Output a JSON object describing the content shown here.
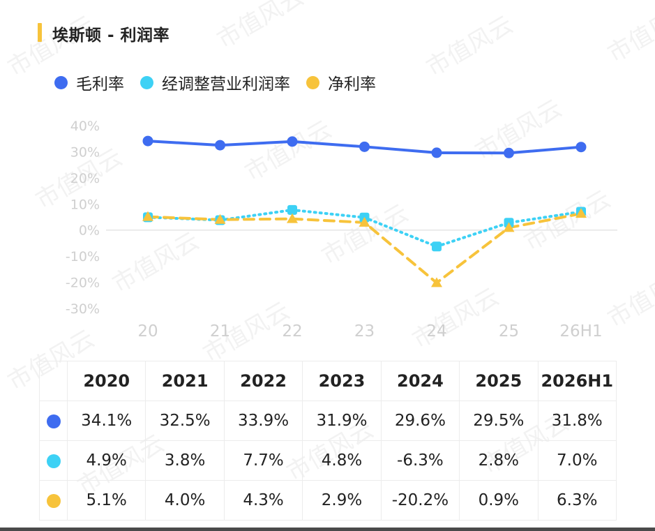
{
  "title": "埃斯顿 - 利润率",
  "watermark_text": "市值风云",
  "colors": {
    "gross": "#3e6cf0",
    "adjusted": "#3dd1f5",
    "net": "#f7c33b",
    "title_bar": "#f7c33b",
    "axis_text": "#cfcfcf",
    "zero_line": "#e5e5e5"
  },
  "legend": [
    {
      "label": "毛利率",
      "color": "#3e6cf0"
    },
    {
      "label": "经调整营业利润率",
      "color": "#3dd1f5"
    },
    {
      "label": "净利率",
      "color": "#f7c33b"
    }
  ],
  "chart_data": {
    "type": "line",
    "categories": [
      "20",
      "21",
      "22",
      "23",
      "24",
      "25",
      "26H1"
    ],
    "y_ticks": [
      "40%",
      "30%",
      "20%",
      "10%",
      "0%",
      "-10%",
      "-20%",
      "-30%"
    ],
    "ylim": [
      -30,
      40
    ],
    "grid": false,
    "legend_position": "top-left",
    "series": [
      {
        "name": "毛利率",
        "color": "#3e6cf0",
        "style": "solid",
        "marker": "circle",
        "values": [
          34.1,
          32.5,
          33.9,
          31.9,
          29.6,
          29.5,
          31.8
        ]
      },
      {
        "name": "经调整营业利润率",
        "color": "#3dd1f5",
        "style": "dotted",
        "marker": "square",
        "values": [
          4.9,
          3.8,
          7.7,
          4.8,
          -6.3,
          2.8,
          7.0
        ]
      },
      {
        "name": "净利率",
        "color": "#f7c33b",
        "style": "dashed",
        "marker": "triangle",
        "values": [
          5.1,
          4.0,
          4.3,
          2.9,
          -20.2,
          0.9,
          6.3
        ]
      }
    ]
  },
  "table": {
    "headers": [
      "2020",
      "2021",
      "2022",
      "2023",
      "2024",
      "2025",
      "2026H1"
    ],
    "rows": [
      {
        "color": "#3e6cf0",
        "values": [
          "34.1%",
          "32.5%",
          "33.9%",
          "31.9%",
          "29.6%",
          "29.5%",
          "31.8%"
        ]
      },
      {
        "color": "#3dd1f5",
        "values": [
          "4.9%",
          "3.8%",
          "7.7%",
          "4.8%",
          "-6.3%",
          "2.8%",
          "7.0%"
        ]
      },
      {
        "color": "#f7c33b",
        "values": [
          "5.1%",
          "4.0%",
          "4.3%",
          "2.9%",
          "-20.2%",
          "0.9%",
          "6.3%"
        ]
      }
    ]
  }
}
